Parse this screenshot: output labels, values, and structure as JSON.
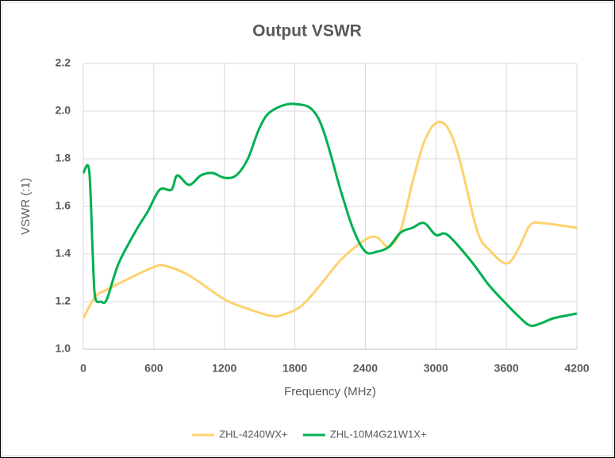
{
  "chart_data": {
    "type": "line",
    "title": "Output VSWR",
    "x_label": "Frequency (MHz)",
    "y_label": "VSWR (:1)",
    "xlim": [
      0,
      4200
    ],
    "xticks": [
      0,
      600,
      1200,
      1800,
      2400,
      3000,
      3600,
      4200
    ],
    "ylim": [
      1.0,
      2.2
    ],
    "yticks": [
      {
        "value": 1.0,
        "label": "1.0"
      },
      1.2,
      1.4,
      1.6,
      1.8,
      {
        "value": 2.0,
        "label": "2.0"
      },
      2.2
    ],
    "grid": true,
    "legend": "bottom",
    "series": [
      {
        "name": "ZHL-4240WX+",
        "color": "#fdd26e",
        "x": [
          0,
          100,
          200,
          400,
          600,
          700,
          900,
          1200,
          1400,
          1600,
          1700,
          1850,
          2000,
          2200,
          2400,
          2500,
          2600,
          2700,
          2800,
          2900,
          3000,
          3100,
          3200,
          3350,
          3450,
          3600,
          3700,
          3800,
          3900,
          4200
        ],
        "values": [
          1.13,
          1.22,
          1.25,
          1.3,
          1.345,
          1.35,
          1.31,
          1.21,
          1.17,
          1.14,
          1.145,
          1.18,
          1.26,
          1.38,
          1.46,
          1.47,
          1.43,
          1.5,
          1.7,
          1.87,
          1.95,
          1.93,
          1.8,
          1.5,
          1.42,
          1.36,
          1.42,
          1.52,
          1.53,
          1.51
        ]
      },
      {
        "name": "ZHL-10M4G21W1X+",
        "color": "#00b050",
        "x": [
          0,
          50,
          80,
          100,
          150,
          200,
          300,
          450,
          550,
          650,
          750,
          800,
          900,
          1000,
          1100,
          1200,
          1300,
          1400,
          1500,
          1600,
          1800,
          2000,
          2200,
          2300,
          2400,
          2500,
          2600,
          2700,
          2800,
          2900,
          3000,
          3100,
          3300,
          3450,
          3600,
          3700,
          3800,
          3900,
          4000,
          4200
        ],
        "values": [
          1.74,
          1.75,
          1.4,
          1.22,
          1.2,
          1.21,
          1.36,
          1.5,
          1.58,
          1.67,
          1.67,
          1.73,
          1.69,
          1.73,
          1.74,
          1.72,
          1.73,
          1.8,
          1.93,
          2.0,
          2.03,
          1.97,
          1.65,
          1.5,
          1.41,
          1.41,
          1.43,
          1.49,
          1.51,
          1.53,
          1.48,
          1.48,
          1.37,
          1.27,
          1.19,
          1.14,
          1.1,
          1.11,
          1.13,
          1.15
        ]
      }
    ]
  }
}
